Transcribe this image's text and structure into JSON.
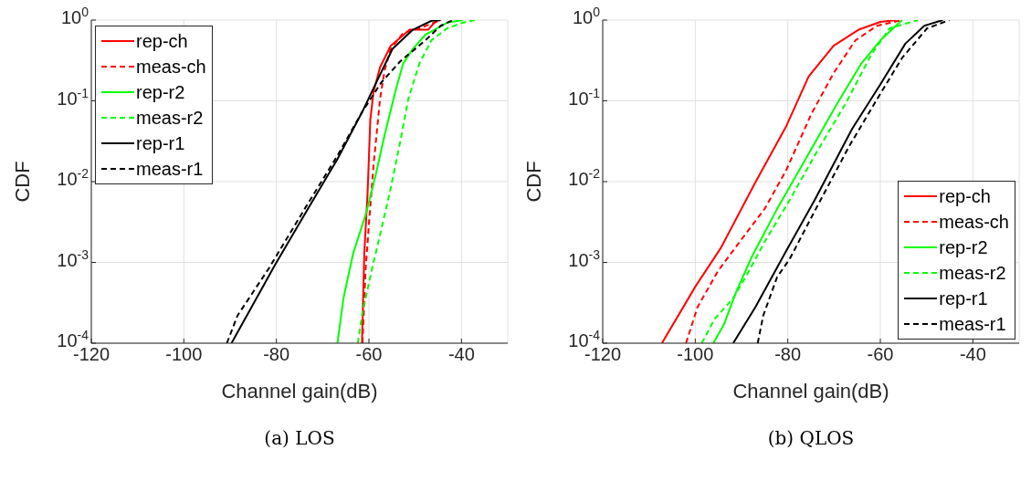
{
  "chart_data": [
    {
      "type": "line",
      "title": "(a) LOS",
      "xlabel": "Channel gain(dB)",
      "ylabel": "CDF",
      "log": "y",
      "xlim": [
        -120,
        -30
      ],
      "xticks": [
        -120,
        -100,
        -80,
        -60,
        -40
      ],
      "ylim": [
        0.0001,
        1
      ],
      "yticks": [
        {
          "value": 0.0001,
          "label": "10$^{-4}$"
        },
        {
          "value": 0.001,
          "label": "10$^{-3}$"
        },
        {
          "value": 0.01,
          "label": "10$^{-2}$"
        },
        {
          "value": 0.1,
          "label": "10$^{-1}$"
        },
        {
          "value": 1,
          "label": "10$^{0}$"
        }
      ],
      "grid": true,
      "legend": "top left",
      "series": [
        {
          "name": "rep-ch",
          "color": "#ff0000",
          "line_style": "solid",
          "x": [
            -61.5,
            -61.0,
            -60.3,
            -59.7,
            -59.0,
            -57.6,
            -55.3,
            -51.2,
            -47.2,
            -45.5,
            -44.5
          ],
          "values": [
            0.0001,
            0.0013,
            0.0071,
            0.058,
            0.13,
            0.26,
            0.48,
            0.76,
            0.76,
            0.98,
            1
          ]
        },
        {
          "name": "meas-ch",
          "color": "#ff0000",
          "line_style": "dashed",
          "x": [
            -61.4,
            -60.7,
            -60.0,
            -59.0,
            -57.6,
            -56.6,
            -55.3,
            -52.6,
            -49.2,
            -45.8,
            -44.5
          ],
          "values": [
            0.0001,
            0.00085,
            0.003,
            0.016,
            0.105,
            0.24,
            0.44,
            0.69,
            0.79,
            0.93,
            1
          ]
        },
        {
          "name": "rep-r2",
          "color": "#00ff00",
          "line_style": "solid",
          "x": [
            -66.8,
            -65.5,
            -63.4,
            -60.7,
            -58.7,
            -56.6,
            -54.3,
            -52.6,
            -50.5,
            -47.8,
            -45.8,
            -43.1,
            -39.7
          ],
          "values": [
            0.0001,
            0.00036,
            0.0013,
            0.0039,
            0.011,
            0.038,
            0.13,
            0.29,
            0.44,
            0.66,
            0.76,
            0.93,
            1
          ]
        },
        {
          "name": "meas-r2",
          "color": "#00ff00",
          "line_style": "dashed",
          "x": [
            -62.4,
            -61.4,
            -59.3,
            -57.3,
            -55.3,
            -53.2,
            -51.5,
            -49.1,
            -46.5,
            -43.1,
            -39.7,
            -37.0
          ],
          "values": [
            0.0001,
            0.00024,
            0.00085,
            0.0026,
            0.0083,
            0.032,
            0.105,
            0.29,
            0.56,
            0.79,
            0.93,
            1
          ]
        },
        {
          "name": "rep-r1",
          "color": "#000000",
          "line_style": "solid",
          "x": [
            -89.7,
            -86.0,
            -80.3,
            -73.5,
            -66.8,
            -61.4,
            -58.6,
            -54.9,
            -50.5,
            -46.5,
            -44.5
          ],
          "values": [
            0.0001,
            0.00024,
            0.00093,
            0.0043,
            0.019,
            0.074,
            0.16,
            0.44,
            0.76,
            0.98,
            1
          ]
        },
        {
          "name": "meas-r1",
          "color": "#000000",
          "line_style": "dashed",
          "x": [
            -90.7,
            -88.4,
            -81.6,
            -73.5,
            -66.8,
            -61.4,
            -57.3,
            -53.2,
            -47.8,
            -44.5,
            -41.8
          ],
          "values": [
            0.0001,
            0.00022,
            0.00085,
            0.005,
            0.021,
            0.074,
            0.17,
            0.31,
            0.56,
            0.85,
            1
          ]
        }
      ]
    },
    {
      "type": "line",
      "title": "(b) QLOS",
      "xlabel": "Channel gain(dB)",
      "ylabel": "CDF",
      "log": "y",
      "xlim": [
        -120,
        -30
      ],
      "xticks": [
        -120,
        -100,
        -80,
        -60,
        -40
      ],
      "ylim": [
        0.0001,
        1
      ],
      "yticks": [
        {
          "value": 0.0001,
          "label": "10$^{-4}$"
        },
        {
          "value": 0.001,
          "label": "10$^{-3}$"
        },
        {
          "value": 0.01,
          "label": "10$^{-2}$"
        },
        {
          "value": 0.1,
          "label": "10$^{-1}$"
        },
        {
          "value": 1,
          "label": "10$^{0}$"
        }
      ],
      "grid": true,
      "legend": "bottom right",
      "series": [
        {
          "name": "rep-ch",
          "color": "#ff0000",
          "line_style": "solid",
          "x": [
            -107.2,
            -99.9,
            -94.5,
            -87.0,
            -80.3,
            -75.5,
            -70.1,
            -64.7,
            -60.0,
            -56.6
          ],
          "values": [
            0.0001,
            0.00051,
            0.0015,
            0.0098,
            0.049,
            0.2,
            0.48,
            0.76,
            0.95,
            1
          ]
        },
        {
          "name": "meas-ch",
          "color": "#ff0000",
          "line_style": "dashed",
          "x": [
            -102.0,
            -99.5,
            -95.1,
            -90.4,
            -85.0,
            -80.3,
            -74.9,
            -70.1,
            -65.4,
            -60.7,
            -55.3
          ],
          "values": [
            0.0001,
            0.00028,
            0.00078,
            0.0018,
            0.0046,
            0.014,
            0.069,
            0.22,
            0.56,
            0.85,
            1
          ]
        },
        {
          "name": "rep-r2",
          "color": "#00ff00",
          "line_style": "solid",
          "x": [
            -96.1,
            -93.8,
            -91.1,
            -87.7,
            -82.3,
            -76.9,
            -69.5,
            -64.1,
            -60.0,
            -55.3
          ],
          "values": [
            0.0001,
            0.00017,
            0.00044,
            0.0012,
            0.0046,
            0.016,
            0.089,
            0.29,
            0.56,
            1
          ]
        },
        {
          "name": "meas-r2",
          "color": "#00ff00",
          "line_style": "dashed",
          "x": [
            -98.6,
            -95.8,
            -91.8,
            -89.1,
            -85.0,
            -79.6,
            -74.2,
            -67.4,
            -62.0,
            -58.0,
            -51.9
          ],
          "values": [
            0.0001,
            0.0002,
            0.00036,
            0.00066,
            0.0018,
            0.0059,
            0.021,
            0.095,
            0.37,
            0.79,
            1
          ]
        },
        {
          "name": "rep-r1",
          "color": "#000000",
          "line_style": "solid",
          "x": [
            -91.8,
            -87.0,
            -80.3,
            -74.2,
            -66.1,
            -60.0,
            -54.6,
            -50.5,
            -46.5
          ],
          "values": [
            0.0001,
            0.00028,
            0.0014,
            0.0059,
            0.045,
            0.16,
            0.51,
            0.85,
            1
          ]
        },
        {
          "name": "meas-r1",
          "color": "#000000",
          "line_style": "dashed",
          "x": [
            -86.5,
            -85.3,
            -82.3,
            -79.6,
            -74.2,
            -66.8,
            -60.7,
            -55.3,
            -49.9,
            -45.1
          ],
          "values": [
            0.0001,
            0.00022,
            0.00066,
            0.0011,
            0.0043,
            0.027,
            0.105,
            0.34,
            0.79,
            1
          ]
        }
      ]
    }
  ]
}
